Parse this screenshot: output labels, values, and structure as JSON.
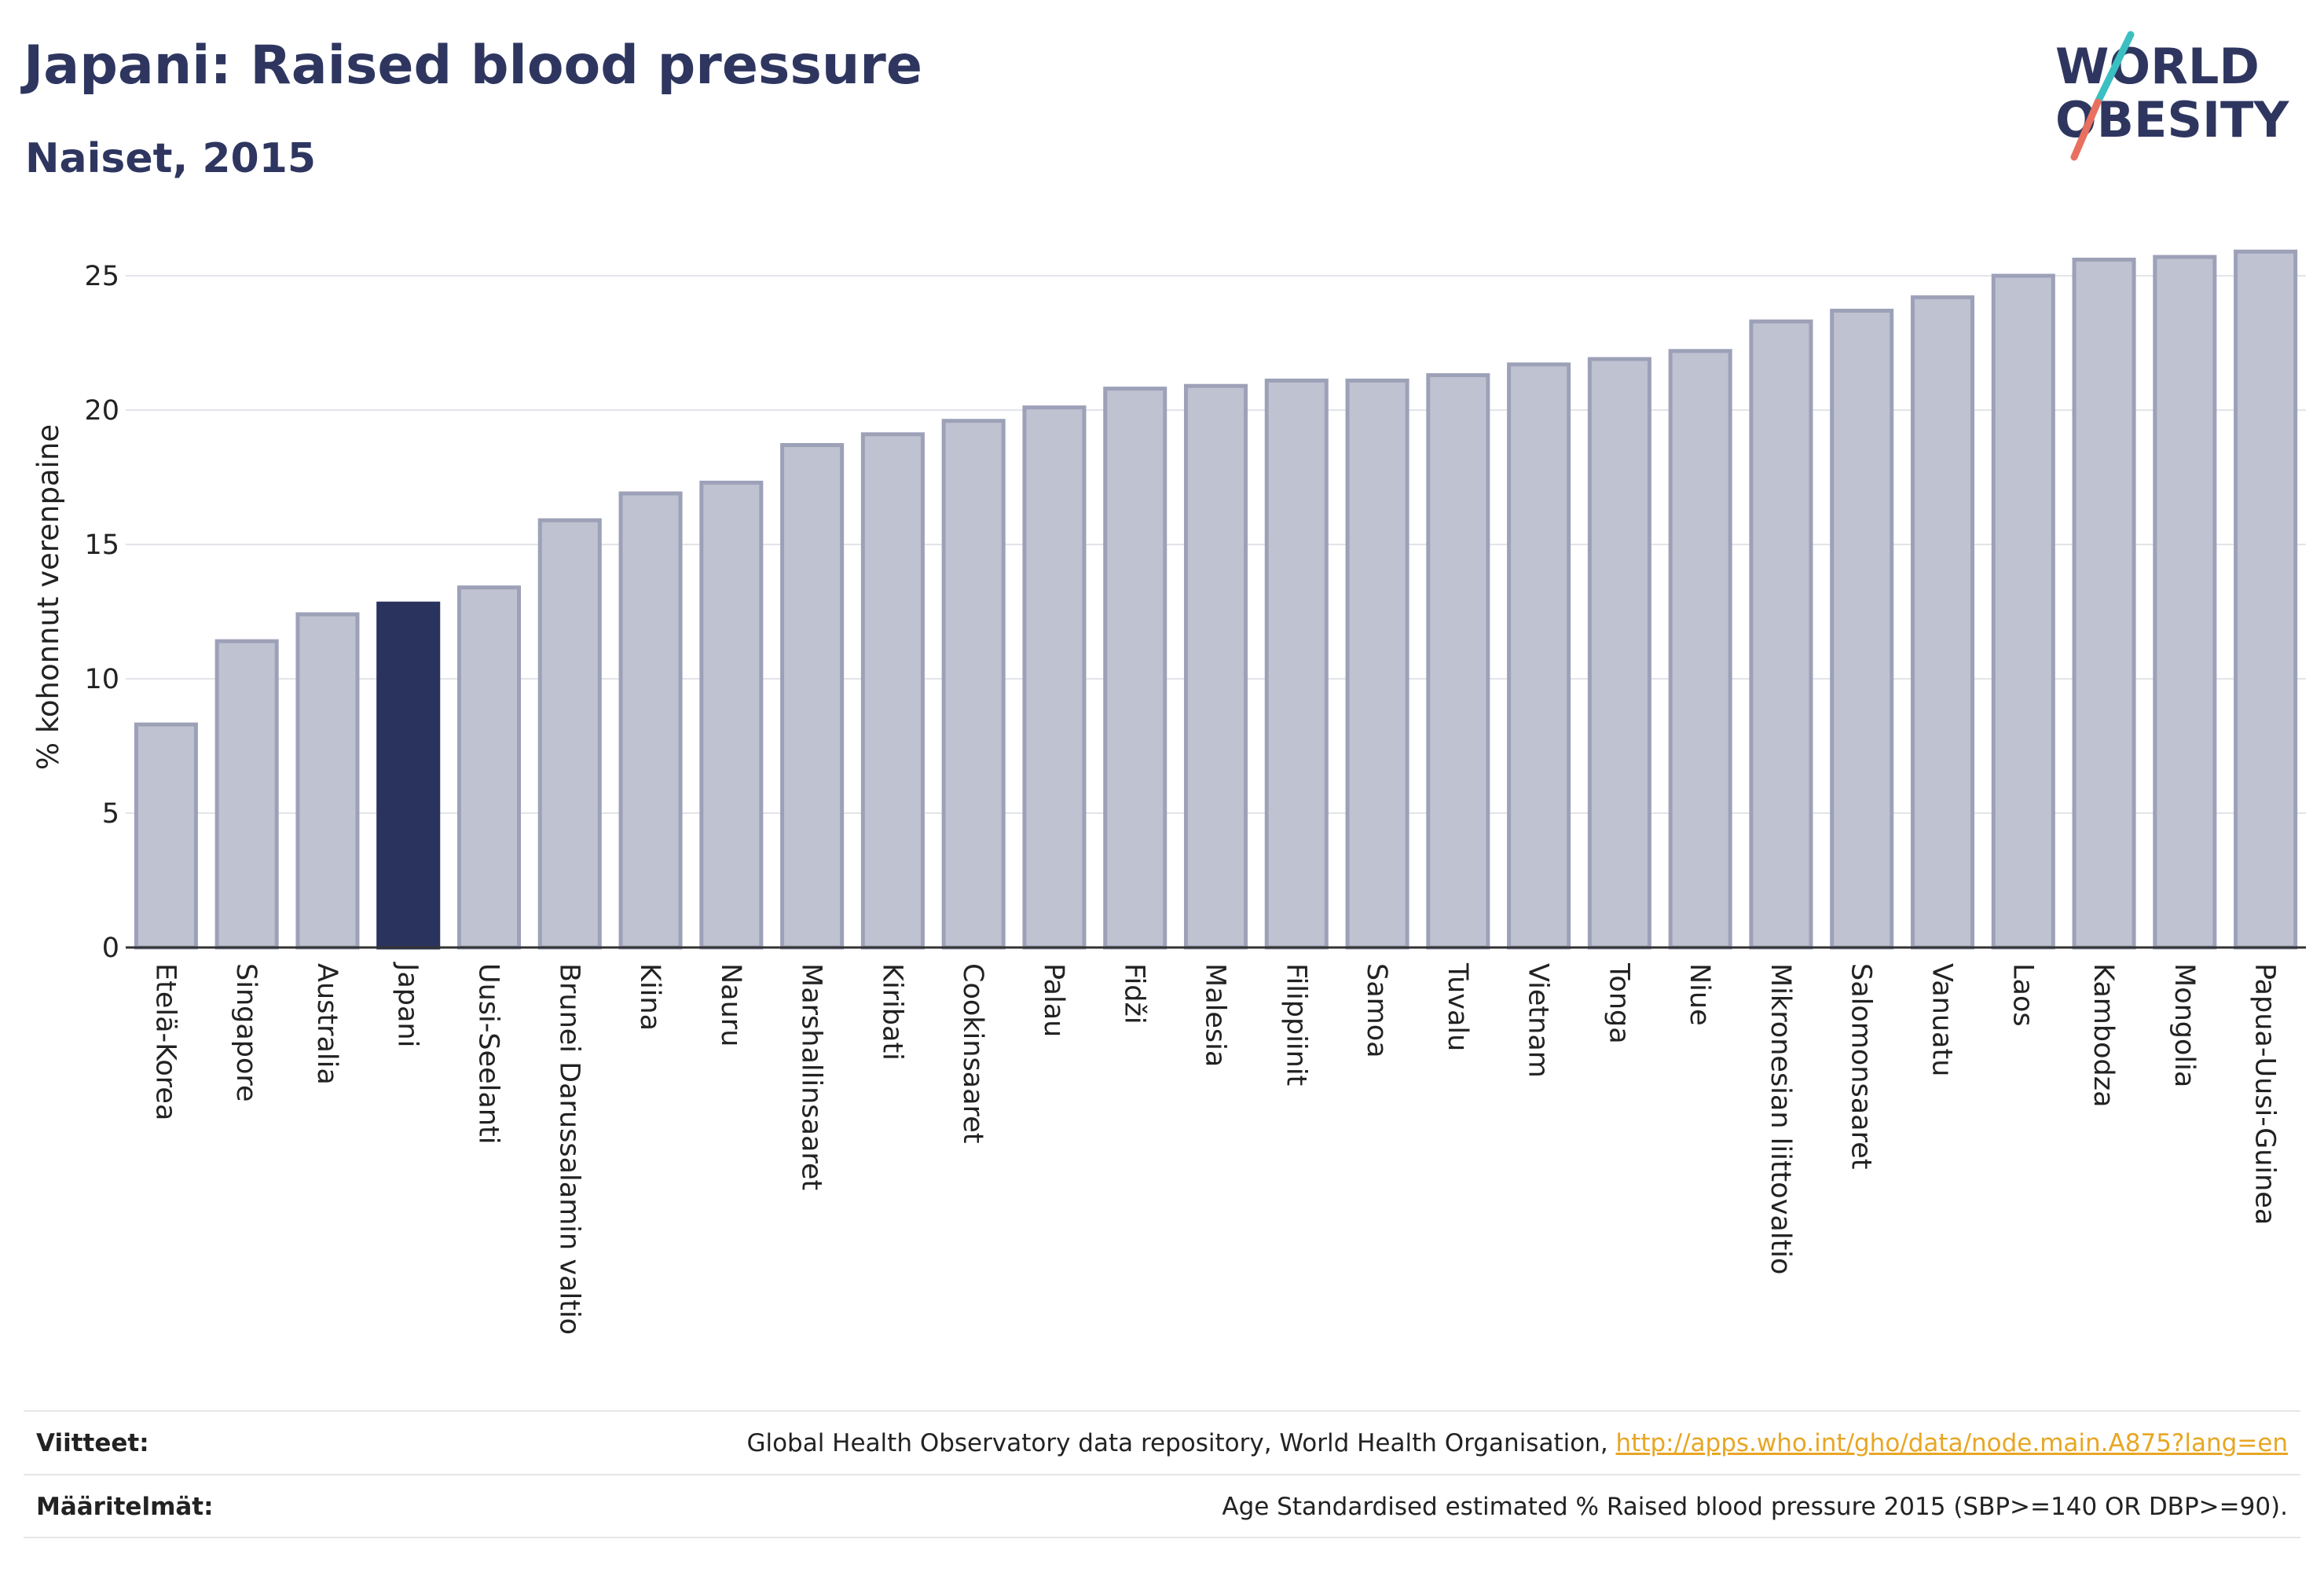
{
  "header": {
    "title": "Japani: Raised blood pressure",
    "subtitle": "Naiset, 2015"
  },
  "logo": {
    "line1": "WORLD",
    "line2": "OBESITY"
  },
  "chart_data": {
    "type": "bar",
    "ylabel": "% kohonnut verenpaine",
    "ylim": [
      0,
      26.5
    ],
    "yticks": [
      0,
      5,
      10,
      15,
      20,
      25
    ],
    "grid": true,
    "highlight": "Japani",
    "colors": {
      "bar": "#bfc2d0",
      "bar_border": "#9da1b8",
      "highlight": "#2a335e"
    },
    "categories": [
      "Etelä-Korea",
      "Singapore",
      "Australia",
      "Japani",
      "Uusi-Seelanti",
      "Brunei Darussalamin valtio",
      "Kiina",
      "Nauru",
      "Marshallinsaaret",
      "Kiribati",
      "Cookinsaaret",
      "Palau",
      "Fidži",
      "Malesia",
      "Filippiinit",
      "Samoa",
      "Tuvalu",
      "Vietnam",
      "Tonga",
      "Niue",
      "Mikronesian liittovaltio",
      "Salomonsaaret",
      "Vanuatu",
      "Laos",
      "Kambodza",
      "Mongolia",
      "Papua-Uusi-Guinea"
    ],
    "values": [
      8.3,
      11.4,
      12.4,
      12.8,
      13.4,
      15.9,
      16.9,
      17.3,
      18.7,
      19.1,
      19.6,
      20.1,
      20.8,
      20.9,
      21.1,
      21.1,
      21.3,
      21.7,
      21.9,
      22.2,
      23.3,
      23.7,
      24.2,
      25.0,
      25.6,
      25.7,
      25.9
    ]
  },
  "footer": {
    "sources_label": "Viitteet:",
    "sources_text": "Global Health Observatory data repository, World Health Organisation, ",
    "sources_link": "http://apps.who.int/gho/data/node.main.A875?lang=en",
    "definitions_label": "Määritelmät:",
    "definitions_text": "Age Standardised estimated % Raised blood pressure 2015 (SBP>=140 OR DBP>=90)."
  }
}
